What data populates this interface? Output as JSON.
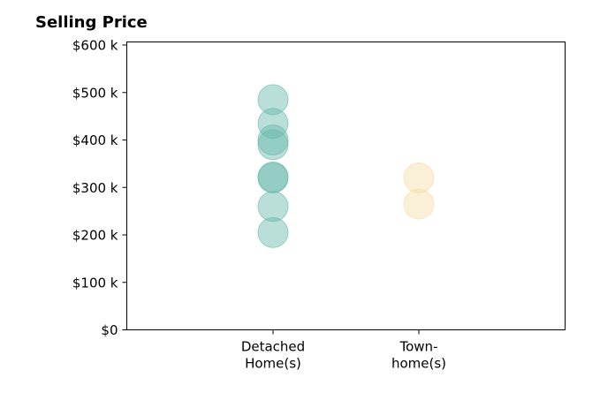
{
  "chart_data": {
    "type": "scatter",
    "title": "Selling Price",
    "xlabel": "",
    "ylabel": "",
    "categories": [
      "Detached\nHome(s)",
      "Town-\nhome(s)"
    ],
    "ylim": [
      0,
      600000
    ],
    "yticks": [
      0,
      100000,
      200000,
      300000,
      400000,
      500000,
      600000
    ],
    "ytick_labels": [
      "$0",
      "$100 k",
      "$200 k",
      "$300 k",
      "$400 k",
      "$500 k",
      "$600 k"
    ],
    "grid": false,
    "series": [
      {
        "category": 0,
        "color": "#66b8aa",
        "values": [
          485000,
          435000,
          400000,
          390000,
          322000,
          320000,
          260000,
          205000
        ]
      },
      {
        "category": 1,
        "color": "#f3dca6",
        "values": [
          320000,
          265000
        ]
      }
    ]
  }
}
